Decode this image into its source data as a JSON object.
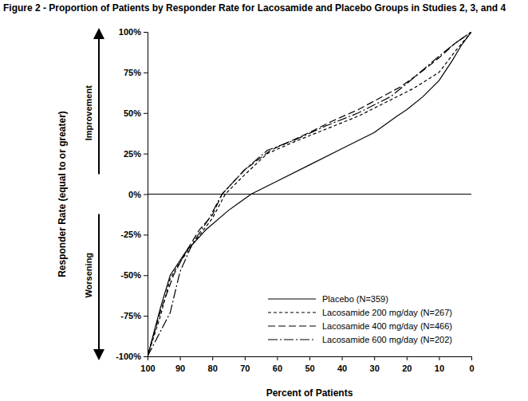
{
  "chart_data": {
    "type": "line",
    "title": "Figure 2 - Proportion of Patients by Responder Rate for Lacosamide and Placebo Groups in Studies 2, 3, and 4",
    "x_label": "Percent of Patients",
    "y_label": "Responder Rate (equal to or greater)",
    "annotations": [
      "Improvement",
      "Worsening"
    ],
    "xlim": [
      100,
      0
    ],
    "xticks": [
      100,
      90,
      80,
      70,
      60,
      50,
      40,
      30,
      20,
      10,
      0
    ],
    "ylim": [
      -100,
      100
    ],
    "yticks": [
      {
        "value": 100,
        "label": "100%"
      },
      {
        "value": 75,
        "label": "75%"
      },
      {
        "value": 50,
        "label": "50%"
      },
      {
        "value": 25,
        "label": "25%"
      },
      {
        "value": 0,
        "label": "0%"
      },
      {
        "value": -25,
        "label": "-25%"
      },
      {
        "value": -50,
        "label": "-50%"
      },
      {
        "value": -75,
        "label": "-75%"
      },
      {
        "value": -100,
        "label": "-100%"
      }
    ],
    "grid": false,
    "legend": "lower right",
    "series": [
      {
        "name": "Placebo (N=359)",
        "color": "#000000",
        "line_style": "solid",
        "x": [
          100,
          96,
          93,
          88,
          82,
          75,
          68,
          60,
          50,
          40,
          30,
          23,
          20,
          15,
          10,
          6,
          3,
          0
        ],
        "values": [
          -100,
          -70,
          -50,
          -35,
          -22,
          -10,
          0,
          8,
          18,
          28,
          38,
          48,
          52,
          60,
          70,
          82,
          92,
          100
        ]
      },
      {
        "name": "Lacosamide 200 mg/day (N=267)",
        "color": "#000000",
        "line_style": "dashed",
        "x": [
          100,
          96,
          93,
          90,
          85,
          80,
          76,
          70,
          63,
          55,
          45,
          35,
          25,
          18,
          10,
          5,
          0
        ],
        "values": [
          -100,
          -75,
          -52,
          -42,
          -28,
          -15,
          0,
          12,
          25,
          32,
          40,
          48,
          58,
          65,
          75,
          88,
          100
        ]
      },
      {
        "name": "Lacosamide 400 mg/day (N=466)",
        "color": "#000000",
        "line_style": "long-dash",
        "x": [
          100,
          96,
          92,
          88,
          84,
          80,
          77,
          70,
          62,
          50,
          43,
          35,
          22,
          15,
          10,
          5,
          0
        ],
        "values": [
          -100,
          -72,
          -50,
          -35,
          -22,
          -13,
          0,
          15,
          27,
          38,
          45,
          52,
          66,
          76,
          84,
          93,
          100
        ]
      },
      {
        "name": "Lacosamide 600 mg/day (N=202)",
        "color": "#000000",
        "line_style": "dash-dot",
        "x": [
          100,
          93,
          90,
          86,
          81,
          77,
          70,
          63,
          55,
          45,
          35,
          25,
          20,
          10,
          5,
          0
        ],
        "values": [
          -100,
          -73,
          -48,
          -30,
          -15,
          0,
          15,
          27,
          33,
          42,
          50,
          60,
          68,
          85,
          93,
          100
        ]
      }
    ]
  }
}
